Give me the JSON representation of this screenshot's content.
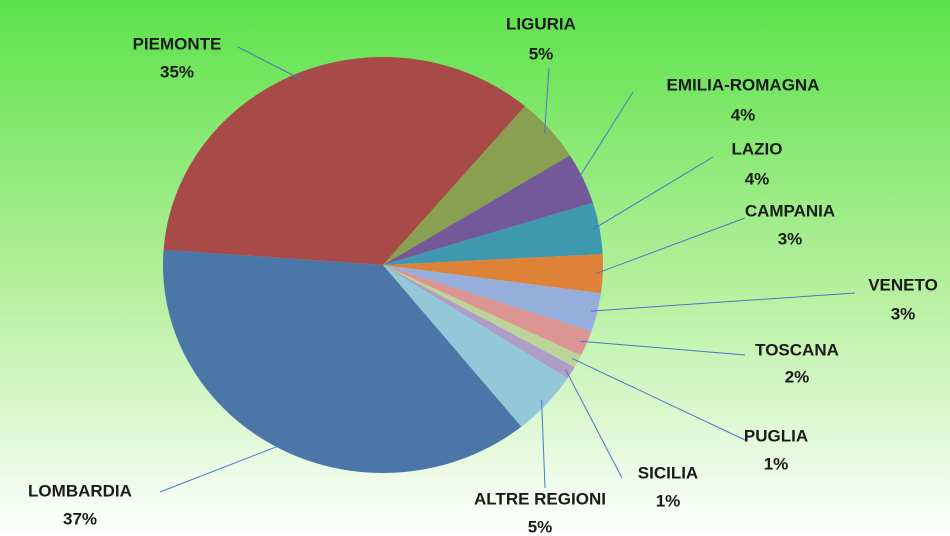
{
  "chart_data": {
    "type": "pie",
    "categories": [
      "LOMBARDIA",
      "PIEMONTE",
      "LIGURIA",
      "EMILIA-ROMAGNA",
      "LAZIO",
      "CAMPANIA",
      "VENETO",
      "TOSCANA",
      "PUGLIA",
      "SICILIA",
      "ALTRE REGIONI"
    ],
    "values": [
      37,
      35,
      5,
      4,
      4,
      3,
      3,
      2,
      1,
      1,
      5
    ],
    "value_labels": [
      "37%",
      "35%",
      "5%",
      "4%",
      "4%",
      "3%",
      "3%",
      "2%",
      "1%",
      "1%",
      "5%"
    ],
    "colors": [
      "#4a76a8",
      "#a84a47",
      "#88a050",
      "#73589a",
      "#3e98b0",
      "#dd8236",
      "#95aedb",
      "#dd9594",
      "#bcd39a",
      "#ae9cc9",
      "#93c8d8"
    ]
  }
}
